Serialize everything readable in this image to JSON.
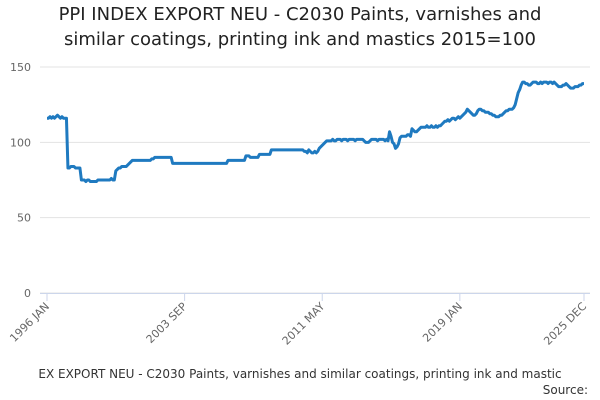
{
  "chart_data": {
    "type": "line",
    "title": [
      "PPI INDEX EXPORT NEU - C2030 Paints, varnishes and",
      "similar coatings, printing ink and mastics 2015=100"
    ],
    "caption": "EX EXPORT NEU - C2030 Paints, varnishes and similar coatings, printing ink and mastic",
    "source": "Source:",
    "color": "#1f7ac0",
    "ylim": [
      0,
      150
    ],
    "yticks": [
      0,
      50,
      100,
      150
    ],
    "grid": true,
    "categories": [
      "1996 JAN",
      null,
      null,
      null,
      null,
      null,
      null,
      null,
      null,
      null,
      null,
      null,
      null,
      null,
      null,
      null,
      null,
      null,
      null,
      null,
      null,
      null,
      null,
      null,
      null,
      null,
      null,
      null,
      null,
      null,
      null,
      null,
      null,
      null,
      null,
      null,
      null,
      null,
      null,
      null,
      null,
      null,
      null,
      null,
      null,
      null,
      null,
      null,
      null,
      null,
      null,
      null,
      null,
      null,
      null,
      null,
      null,
      null,
      null,
      null,
      null,
      null,
      null,
      null,
      null,
      null,
      null,
      null,
      null,
      null,
      null,
      null,
      null,
      null,
      null,
      null,
      null,
      null,
      null,
      null,
      null,
      null,
      null,
      null,
      null,
      null,
      null,
      null,
      null,
      null,
      null,
      null,
      "2003 SEP",
      null,
      null,
      null,
      null,
      null,
      null,
      null,
      null,
      null,
      null,
      null,
      null,
      null,
      null,
      null,
      null,
      null,
      null,
      null,
      null,
      null,
      null,
      null,
      null,
      null,
      null,
      null,
      null,
      null,
      null,
      null,
      null,
      null,
      null,
      null,
      null,
      null,
      null,
      null,
      null,
      null,
      null,
      null,
      null,
      null,
      null,
      null,
      null,
      null,
      null,
      null,
      null,
      null,
      null,
      null,
      null,
      null,
      null,
      null,
      null,
      null,
      null,
      null,
      null,
      null,
      null,
      null,
      null,
      null,
      null,
      null,
      null,
      null,
      null,
      null,
      null,
      null,
      null,
      null,
      null,
      null,
      null,
      null,
      null,
      null,
      null,
      null,
      null,
      null,
      null,
      null,
      "2011 MAY",
      null,
      null,
      null,
      null,
      null,
      null,
      null,
      null,
      null,
      null,
      null,
      null,
      null,
      null,
      null,
      null,
      null,
      null,
      null,
      null,
      null,
      null,
      null,
      null,
      null,
      null,
      null,
      null,
      null,
      null,
      null,
      null,
      null,
      null,
      null,
      null,
      null,
      null,
      null,
      null,
      null,
      null,
      null,
      null,
      null,
      null,
      null,
      null,
      null,
      null,
      null,
      null,
      null,
      null,
      null,
      null,
      null,
      null,
      null,
      null,
      null,
      null,
      null,
      null,
      null,
      null,
      null,
      null,
      null,
      null,
      null,
      null,
      null,
      null,
      null,
      null,
      null,
      null,
      null,
      null,
      null,
      null,
      null,
      null,
      null,
      null,
      null,
      null,
      null,
      null,
      null,
      "2019 JAN",
      null,
      null,
      null,
      null,
      null,
      null,
      null,
      null,
      null,
      null,
      null,
      null,
      null,
      null,
      null,
      null,
      null,
      null,
      null,
      null,
      null,
      null,
      null,
      null,
      null,
      null,
      null,
      null,
      null,
      null,
      null,
      null,
      null,
      null,
      null,
      null,
      null,
      null,
      null,
      null,
      null,
      null,
      null,
      null,
      null,
      null,
      null,
      null,
      null,
      null,
      null,
      null,
      null,
      null,
      null,
      null,
      null,
      null,
      null,
      null,
      null,
      null,
      null,
      null,
      null,
      null,
      null,
      null,
      null,
      null,
      null,
      null,
      null,
      null,
      null,
      null,
      null,
      null,
      null,
      null,
      null,
      null,
      "2025 DEC"
    ],
    "values": [
      116,
      116,
      117,
      116,
      117,
      116,
      117,
      118,
      117,
      116,
      117,
      116,
      116,
      116,
      83,
      83,
      84,
      84,
      84,
      83,
      83,
      83,
      83,
      75,
      75,
      75,
      74,
      75,
      75,
      74,
      74,
      74,
      74,
      74,
      75,
      75,
      75,
      75,
      75,
      75,
      75,
      75,
      75,
      76,
      75,
      75,
      81,
      82,
      83,
      83,
      84,
      84,
      84,
      84,
      85,
      86,
      87,
      88,
      88,
      88,
      88,
      88,
      88,
      88,
      88,
      88,
      88,
      88,
      88,
      88,
      89,
      89,
      90,
      90,
      90,
      90,
      90,
      90,
      90,
      90,
      90,
      90,
      90,
      90,
      86,
      86,
      86,
      86,
      86,
      86,
      86,
      86,
      86,
      86,
      86,
      86,
      86,
      86,
      86,
      86,
      86,
      86,
      86,
      86,
      86,
      86,
      86,
      86,
      86,
      86,
      86,
      86,
      86,
      86,
      86,
      86,
      86,
      86,
      86,
      86,
      86,
      88,
      88,
      88,
      88,
      88,
      88,
      88,
      88,
      88,
      88,
      88,
      88,
      91,
      91,
      91,
      90,
      90,
      90,
      90,
      90,
      90,
      92,
      92,
      92,
      92,
      92,
      92,
      92,
      92,
      95,
      95,
      95,
      95,
      95,
      95,
      95,
      95,
      95,
      95,
      95,
      95,
      95,
      95,
      95,
      95,
      95,
      95,
      95,
      95,
      95,
      95,
      94,
      94,
      93,
      95,
      94,
      93,
      93,
      94,
      93,
      94,
      96,
      97,
      98,
      99,
      100,
      101,
      101,
      101,
      101,
      102,
      101,
      101,
      102,
      102,
      102,
      101,
      102,
      102,
      102,
      101,
      102,
      102,
      102,
      102,
      101,
      102,
      102,
      102,
      102,
      102,
      101,
      100,
      100,
      100,
      101,
      102,
      102,
      102,
      102,
      101,
      102,
      102,
      102,
      102,
      101,
      102,
      101,
      107,
      104,
      100,
      99,
      96,
      97,
      99,
      103,
      104,
      104,
      104,
      104,
      105,
      105,
      104,
      109,
      108,
      107,
      107,
      108,
      109,
      110,
      110,
      110,
      110,
      111,
      110,
      110,
      111,
      110,
      110,
      111,
      110,
      111,
      111,
      112,
      113,
      114,
      114,
      115,
      114,
      115,
      116,
      116,
      115,
      116,
      117,
      116,
      117,
      118,
      119,
      120,
      122,
      121,
      120,
      119,
      118,
      118,
      119,
      121,
      122,
      122,
      121,
      121,
      120,
      120,
      120,
      119,
      119,
      118,
      118,
      117,
      117,
      117,
      118,
      118,
      119,
      120,
      121,
      121,
      122,
      122,
      122,
      123,
      125,
      129,
      133,
      135,
      138,
      140,
      140,
      139,
      139,
      138,
      138,
      139,
      140,
      140,
      140,
      139,
      139,
      140,
      139,
      140,
      140,
      140,
      139,
      140,
      140,
      139,
      140,
      139,
      138,
      137,
      137,
      137,
      138,
      138,
      139,
      138,
      137,
      136,
      136,
      136,
      137,
      137,
      137,
      138,
      138,
      139,
      139
    ]
  }
}
